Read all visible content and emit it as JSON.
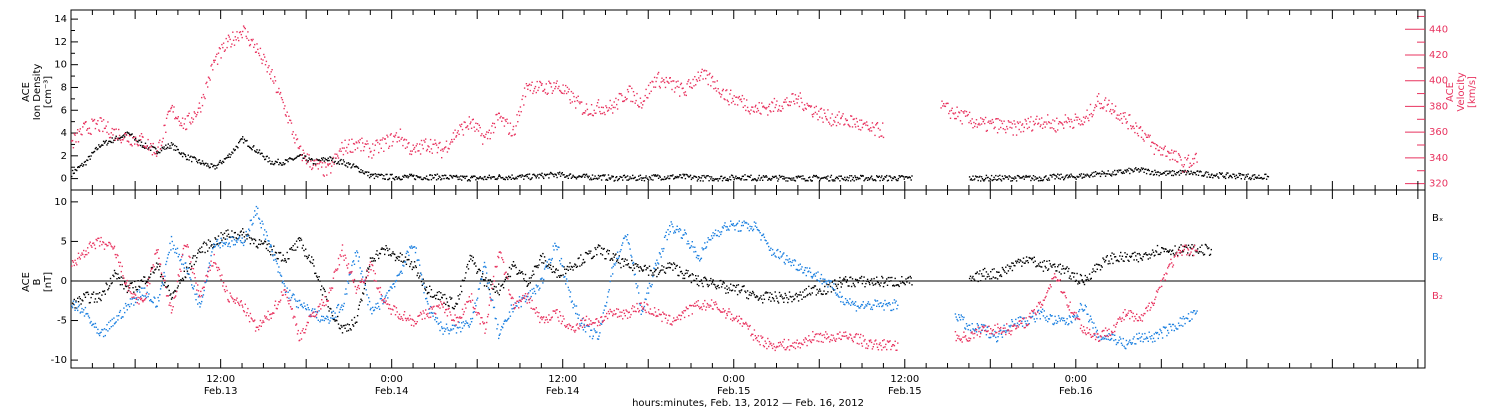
{
  "chart_data": [
    {
      "type": "scatter",
      "panel": "top",
      "ylabel_lines": [
        "ACE",
        "Ion Density",
        "[cm⁻³]"
      ],
      "ylabel_right_lines": [
        "ACE",
        "Velocity",
        "[km/s]"
      ],
      "ylim": [
        -1,
        14.8
      ],
      "yticks": [
        0,
        2,
        4,
        6,
        8,
        10,
        12,
        14
      ],
      "ylim_right": [
        315,
        455
      ],
      "yticks_right": [
        320,
        340,
        360,
        380,
        400,
        420,
        440
      ],
      "series": [
        {
          "axis": "left",
          "color": "#000000",
          "x": [
            0,
            2,
            4,
            6,
            8,
            10,
            12,
            14,
            16,
            18,
            20,
            22,
            24,
            26,
            28,
            30,
            32,
            34,
            36,
            38,
            40,
            42,
            44,
            46,
            48,
            50,
            52,
            54,
            56,
            58,
            60,
            62,
            64,
            66,
            68,
            70,
            72,
            74,
            76,
            78,
            80,
            82,
            84,
            86,
            88,
            90,
            92,
            94,
            96,
            98,
            100,
            102,
            104,
            106,
            108,
            110,
            112,
            114,
            116,
            118,
            120,
            122,
            124,
            126,
            128,
            130,
            132,
            134,
            136,
            138,
            140,
            142,
            144,
            146,
            148,
            150,
            152,
            154,
            156,
            158,
            160,
            162,
            164,
            166,
            168,
            170,
            172,
            174,
            176,
            178
          ],
          "values": [
            0.5,
            1.5,
            3,
            3.5,
            4,
            3,
            2.5,
            3,
            2,
            1.5,
            1,
            2,
            3.5,
            2.5,
            1.5,
            1.5,
            2,
            1.5,
            1.8,
            1.5,
            1,
            0.3,
            0.2,
            0.2,
            0.2,
            0.2,
            0.2,
            0.1,
            0.1,
            0.1,
            0.2,
            0.2,
            0.2,
            0.3,
            0.4,
            0.3,
            0.2,
            0.2,
            0.1,
            0.1,
            0.1,
            0.2,
            0.2,
            0.2,
            0.1,
            0.1,
            0.1,
            0.2,
            0.1,
            0.1,
            0.1,
            0.1,
            0.1,
            0.1,
            0.1,
            0.1,
            0.1,
            0.1,
            0.1,
            0.1,
            null,
            null,
            null,
            0.1,
            0.1,
            0.1,
            0.1,
            0.1,
            0.1,
            0.2,
            0.2,
            0.3,
            0.5,
            0.5,
            0.7,
            0.8,
            0.6,
            0.5,
            0.6,
            0.5,
            0.4,
            0.3,
            0.3,
            0.2,
            0.2,
            null,
            null,
            null,
            null,
            null
          ]
        },
        {
          "axis": "right",
          "color": "#e8335f",
          "x": [
            0,
            2,
            4,
            6,
            8,
            10,
            12,
            14,
            16,
            18,
            20,
            22,
            24,
            26,
            28,
            30,
            32,
            34,
            36,
            38,
            40,
            42,
            44,
            46,
            48,
            50,
            52,
            54,
            56,
            58,
            60,
            62,
            64,
            66,
            68,
            70,
            72,
            74,
            76,
            78,
            80,
            82,
            84,
            86,
            88,
            90,
            92,
            94,
            96,
            98,
            100,
            102,
            104,
            106,
            108,
            110,
            112,
            114,
            116,
            118,
            120,
            122,
            124,
            126,
            128,
            130,
            132,
            134,
            136,
            138,
            140,
            142,
            144,
            146,
            148,
            150,
            152,
            154,
            156,
            158,
            160,
            162,
            164,
            166,
            168,
            170,
            172,
            174,
            176,
            178
          ],
          "values": [
            352,
            364,
            366,
            360,
            356,
            354,
            345,
            378,
            366,
            380,
            415,
            430,
            440,
            425,
            405,
            378,
            345,
            335,
            330,
            348,
            352,
            346,
            352,
            358,
            345,
            352,
            346,
            360,
            368,
            355,
            372,
            360,
            398,
            394,
            397,
            388,
            378,
            380,
            380,
            392,
            384,
            402,
            398,
            392,
            405,
            400,
            388,
            385,
            378,
            380,
            383,
            386,
            378,
            372,
            370,
            368,
            362,
            362,
            null,
            null,
            null,
            380,
            375,
            370,
            366,
            366,
            363,
            366,
            370,
            366,
            370,
            368,
            385,
            380,
            370,
            362,
            348,
            345,
            335,
            340,
            null,
            null,
            null,
            null,
            null,
            null,
            null,
            null,
            null,
            null
          ]
        }
      ]
    },
    {
      "type": "scatter",
      "panel": "bottom",
      "ylabel_lines": [
        "ACE",
        "B",
        "[nT]"
      ],
      "ylim": [
        -11,
        11.5
      ],
      "yticks": [
        -10,
        -5,
        0,
        5,
        10
      ],
      "series": [
        {
          "name": "Bx",
          "color": "#000000",
          "x": [
            0,
            2,
            4,
            6,
            8,
            10,
            12,
            14,
            16,
            18,
            20,
            22,
            24,
            26,
            28,
            30,
            32,
            34,
            36,
            38,
            40,
            42,
            44,
            46,
            48,
            50,
            52,
            54,
            56,
            58,
            60,
            62,
            64,
            66,
            68,
            70,
            72,
            74,
            76,
            78,
            80,
            82,
            84,
            86,
            88,
            90,
            92,
            94,
            96,
            98,
            100,
            102,
            104,
            106,
            108,
            110,
            112,
            114,
            116,
            118,
            120,
            122,
            124,
            126,
            128,
            130,
            132,
            134,
            136,
            138,
            140,
            142,
            144,
            146,
            148,
            150,
            152,
            154,
            156,
            158,
            160,
            162,
            164,
            166,
            168,
            170,
            172,
            174,
            176,
            178
          ],
          "values": [
            -3,
            -2,
            -2,
            1,
            -1,
            0,
            2,
            -2,
            1,
            4,
            5,
            6,
            6,
            5,
            4,
            3,
            5,
            2,
            -3,
            -6,
            -5,
            3,
            4,
            3,
            2,
            -1,
            -2,
            -3,
            3,
            0,
            -1,
            2,
            0,
            3,
            1,
            2,
            3,
            4,
            3,
            2,
            2,
            1,
            2,
            1,
            0,
            0,
            -1,
            -1,
            -2,
            -2,
            -2,
            -2,
            -1,
            -1,
            0,
            0,
            0,
            0,
            0,
            0,
            null,
            null,
            null,
            0,
            1,
            1,
            2,
            3,
            2,
            2,
            1,
            0,
            2,
            3,
            3,
            3,
            4,
            4,
            4,
            4,
            4,
            null,
            null,
            null,
            null,
            null,
            null,
            null,
            null,
            null
          ]
        },
        {
          "name": "By",
          "color": "#1a7fe0",
          "x": [
            0,
            2,
            4,
            6,
            8,
            10,
            12,
            14,
            16,
            18,
            20,
            22,
            24,
            26,
            28,
            30,
            32,
            34,
            36,
            38,
            40,
            42,
            44,
            46,
            48,
            50,
            52,
            54,
            56,
            58,
            60,
            62,
            64,
            66,
            68,
            70,
            72,
            74,
            76,
            78,
            80,
            82,
            84,
            86,
            88,
            90,
            92,
            94,
            96,
            98,
            100,
            102,
            104,
            106,
            108,
            110,
            112,
            114,
            116,
            118,
            120,
            122,
            124,
            126,
            128,
            130,
            132,
            134,
            136,
            138,
            140,
            142,
            144,
            146,
            148,
            150,
            152,
            154,
            156,
            158,
            160,
            162,
            164,
            166,
            168,
            170,
            172,
            174,
            176,
            178
          ],
          "values": [
            -3,
            -4,
            -7,
            -5,
            -3,
            -1,
            -3,
            5,
            2,
            -3,
            5,
            5,
            5,
            9,
            4,
            -1,
            -3,
            -4,
            -5,
            -3,
            4,
            -4,
            -2,
            1,
            5,
            -3,
            -6,
            -6,
            -5,
            2,
            -7,
            -3,
            -2,
            0,
            5,
            -2,
            -6,
            -7,
            2,
            6,
            -4,
            2,
            7,
            6,
            3,
            6,
            7,
            7,
            7,
            4,
            3,
            2,
            1,
            0,
            -2,
            -3,
            -3,
            -3,
            -3,
            null,
            null,
            null,
            -4,
            -6,
            -6,
            -7,
            -5,
            -5,
            -4,
            -5,
            -5,
            -3,
            -7,
            -7,
            -8,
            -7,
            -7,
            -6,
            -5,
            -4,
            null,
            null,
            null,
            null,
            null,
            null,
            null,
            null,
            null,
            null
          ]
        },
        {
          "name": "Bz",
          "color": "#e8335f",
          "x": [
            0,
            2,
            4,
            6,
            8,
            10,
            12,
            14,
            16,
            18,
            20,
            22,
            24,
            26,
            28,
            30,
            32,
            34,
            36,
            38,
            40,
            42,
            44,
            46,
            48,
            50,
            52,
            54,
            56,
            58,
            60,
            62,
            64,
            66,
            68,
            70,
            72,
            74,
            76,
            78,
            80,
            82,
            84,
            86,
            88,
            90,
            92,
            94,
            96,
            98,
            100,
            102,
            104,
            106,
            108,
            110,
            112,
            114,
            116,
            118,
            120,
            122,
            124,
            126,
            128,
            130,
            132,
            134,
            136,
            138,
            140,
            142,
            144,
            146,
            148,
            150,
            152,
            154,
            156,
            158,
            160,
            162,
            164,
            166,
            168,
            170,
            172,
            174,
            176,
            178
          ],
          "values": [
            2,
            4,
            5,
            4,
            -1,
            -3,
            4,
            -4,
            5,
            -2,
            3,
            -2,
            -3,
            -6,
            -4,
            -1,
            -7,
            -4,
            -2,
            4,
            -1,
            2,
            -3,
            -4,
            -5,
            -4,
            -3,
            -5,
            -2,
            -6,
            4,
            -3,
            -2,
            -5,
            -4,
            -6,
            -5,
            -5,
            -4,
            -4,
            -3,
            -4,
            -5,
            -4,
            -3,
            -3,
            -4,
            -5,
            -7,
            -8,
            -8,
            -8,
            -7,
            -7,
            -7,
            -7,
            -8,
            -8,
            -8,
            null,
            null,
            null,
            -7,
            -7,
            -6,
            -6,
            -6,
            -5,
            -3,
            1,
            -3,
            -6,
            -7,
            -6,
            -4,
            -5,
            -2,
            2,
            4,
            4,
            null,
            null,
            null,
            null,
            null,
            null,
            null,
            null,
            null,
            null
          ]
        }
      ],
      "legend": [
        "Bₓ",
        "Bᵧ",
        "B₂"
      ]
    }
  ],
  "x_axis": {
    "xlim": [
      0,
      190
    ],
    "label": "hours:minutes, Feb. 13, 2012 — Feb. 16, 2012",
    "ticks": [
      {
        "x": 21,
        "time": "12:00",
        "date": "Feb.13"
      },
      {
        "x": 45,
        "time": "0:00",
        "date": "Feb.14"
      },
      {
        "x": 69,
        "time": "12:00",
        "date": "Feb.14"
      },
      {
        "x": 93,
        "time": "0:00",
        "date": "Feb.15"
      },
      {
        "x": 117,
        "time": "12:00",
        "date": "Feb.15"
      },
      {
        "x": 141,
        "time": "0:00",
        "date": "Feb.16"
      }
    ]
  },
  "colors": {
    "black": "#000000",
    "blue": "#1a7fe0",
    "red": "#e8335f"
  }
}
